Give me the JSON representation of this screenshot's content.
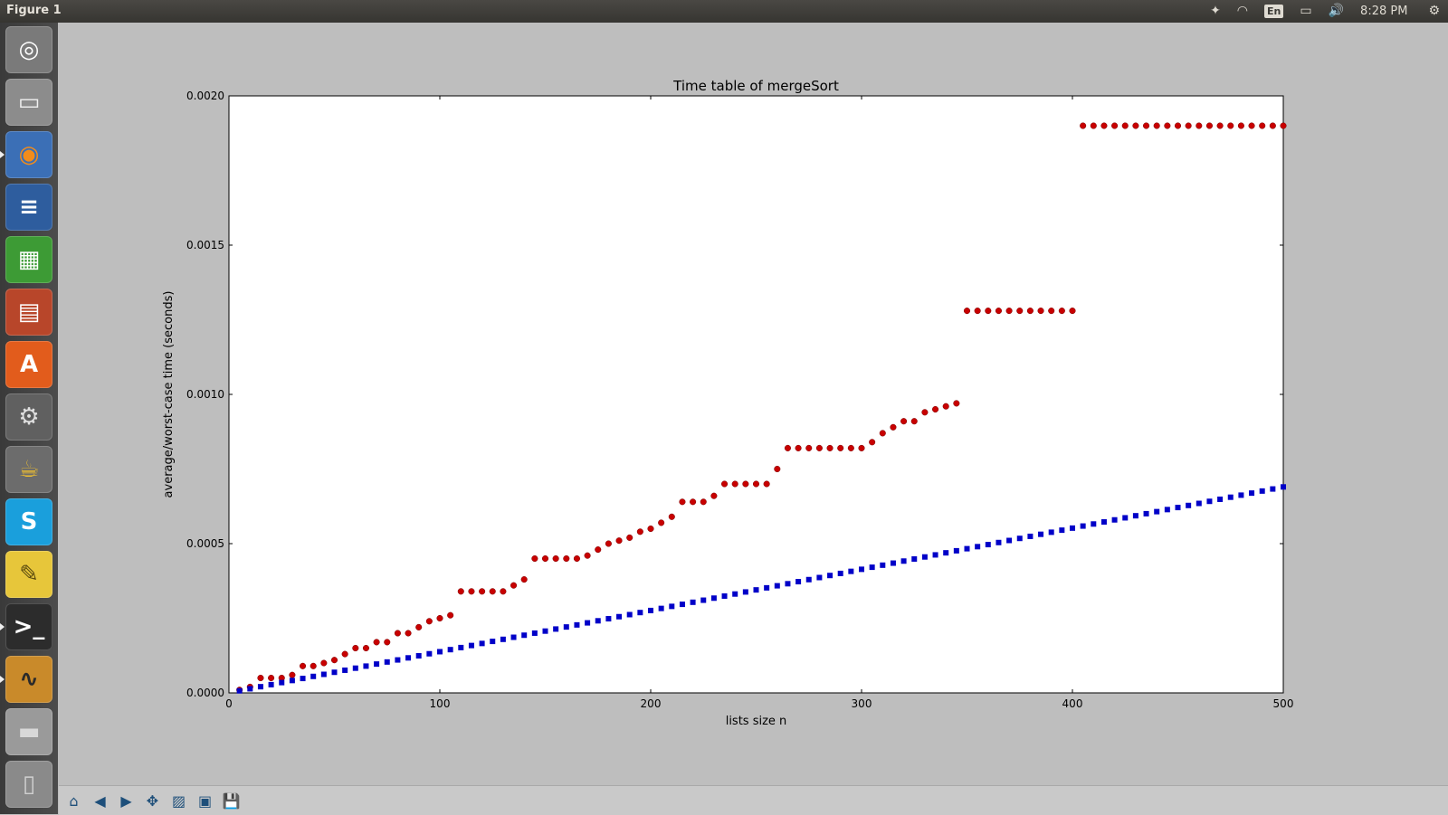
{
  "window": {
    "title": "Figure 1"
  },
  "topbar": {
    "indicators": [
      {
        "name": "dropbox-icon",
        "glyph": "✦"
      },
      {
        "name": "wifi-icon",
        "glyph": "◠"
      },
      {
        "name": "keyboard-layout-indicator",
        "glyph": "En"
      },
      {
        "name": "battery-icon",
        "glyph": "▭"
      },
      {
        "name": "volume-icon",
        "glyph": "🔊"
      }
    ],
    "clock": "8:28 PM",
    "gear_glyph": "⚙"
  },
  "launcher": {
    "items": [
      {
        "name": "ubuntu-dash-icon",
        "glyph": "◎",
        "bg": "#7a7a7a",
        "fg": "#ffffff"
      },
      {
        "name": "files-icon",
        "glyph": "▭",
        "bg": "#8c8c8c",
        "fg": "#f0f0f0"
      },
      {
        "name": "firefox-icon",
        "glyph": "◉",
        "bg": "#3b6fb6",
        "fg": "#f28c1b"
      },
      {
        "name": "writer-icon",
        "glyph": "≡",
        "bg": "#2e5d9e",
        "fg": "#ffffff"
      },
      {
        "name": "calc-icon",
        "glyph": "▦",
        "bg": "#3d9b35",
        "fg": "#ffffff"
      },
      {
        "name": "impress-icon",
        "glyph": "▤",
        "bg": "#b8462a",
        "fg": "#ffffff"
      },
      {
        "name": "software-center-icon",
        "glyph": "A",
        "bg": "#e25c1c",
        "fg": "#ffffff"
      },
      {
        "name": "system-settings-icon",
        "glyph": "⚙",
        "bg": "#606060",
        "fg": "#e0e0e0"
      },
      {
        "name": "tea-pot-icon",
        "glyph": "☕",
        "bg": "#6c6c6c",
        "fg": "#f0c030"
      },
      {
        "name": "skype-icon",
        "glyph": "S",
        "bg": "#1a9fdc",
        "fg": "#ffffff"
      },
      {
        "name": "notes-icon",
        "glyph": "✎",
        "bg": "#e7c63a",
        "fg": "#5a4a10"
      },
      {
        "name": "terminal-icon",
        "glyph": ">_",
        "bg": "#2c2c2c",
        "fg": "#ffffff"
      },
      {
        "name": "figure-window-icon",
        "glyph": "∿",
        "bg": "#c98a2a",
        "fg": "#2a2a2a"
      },
      {
        "name": "disk-icon",
        "glyph": "▬",
        "bg": "#9a9a9a",
        "fg": "#d8d8d8"
      },
      {
        "name": "trash-icon",
        "glyph": "▯",
        "bg": "#8a8a8a",
        "fg": "#d0d0d0"
      }
    ]
  },
  "toolbar": {
    "buttons": [
      {
        "name": "home-button",
        "glyph": "⌂"
      },
      {
        "name": "back-button",
        "glyph": "◀"
      },
      {
        "name": "forward-button",
        "glyph": "▶"
      },
      {
        "name": "pan-button",
        "glyph": "✥"
      },
      {
        "name": "zoom-rect-button",
        "glyph": "▨"
      },
      {
        "name": "configure-subplots-button",
        "glyph": "▣"
      },
      {
        "name": "save-button",
        "glyph": "💾"
      }
    ]
  },
  "colors": {
    "red_series": "#c80000",
    "blue_series": "#0000c8",
    "axes_bg": "#ffffff",
    "figure_bg": "#bebebe"
  },
  "chart_data": {
    "type": "scatter",
    "title": "Time table of mergeSort",
    "xlabel": "lists size n",
    "ylabel": "average/worst-case time (seconds)",
    "xlim": [
      0,
      500
    ],
    "ylim": [
      0,
      0.002
    ],
    "xticks": [
      "0",
      "100",
      "200",
      "300",
      "400",
      "500"
    ],
    "yticks": [
      "0.0000",
      "0.0005",
      "0.0010",
      "0.0015",
      "0.0020"
    ],
    "grid": false,
    "legend": "none",
    "series": [
      {
        "marker": "circle",
        "color": "#c80000",
        "x": [
          5,
          10,
          15,
          20,
          25,
          30,
          35,
          40,
          45,
          50,
          55,
          60,
          65,
          70,
          75,
          80,
          85,
          90,
          95,
          100,
          105,
          110,
          115,
          120,
          125,
          130,
          135,
          140,
          145,
          150,
          155,
          160,
          165,
          170,
          175,
          180,
          185,
          190,
          195,
          200,
          205,
          210,
          215,
          220,
          225,
          230,
          235,
          240,
          245,
          250,
          255,
          260,
          265,
          270,
          275,
          280,
          285,
          290,
          295,
          300,
          305,
          310,
          315,
          320,
          325,
          330,
          335,
          340,
          345,
          350,
          355,
          360,
          365,
          370,
          375,
          380,
          385,
          390,
          395,
          400,
          405,
          410,
          415,
          420,
          425,
          430,
          435,
          440,
          445,
          450,
          455,
          460,
          465,
          470,
          475,
          480,
          485,
          490,
          495,
          500
        ],
        "y": [
          1e-05,
          2e-05,
          5e-05,
          5e-05,
          5e-05,
          6e-05,
          9e-05,
          9e-05,
          0.0001,
          0.00011,
          0.00013,
          0.00015,
          0.00015,
          0.00017,
          0.00017,
          0.0002,
          0.0002,
          0.00022,
          0.00024,
          0.00025,
          0.00026,
          0.00034,
          0.00034,
          0.00034,
          0.00034,
          0.00034,
          0.00036,
          0.00038,
          0.00045,
          0.00045,
          0.00045,
          0.00045,
          0.00045,
          0.00046,
          0.00048,
          0.0005,
          0.00051,
          0.00052,
          0.00054,
          0.00055,
          0.00057,
          0.00059,
          0.00064,
          0.00064,
          0.00064,
          0.00066,
          0.0007,
          0.0007,
          0.0007,
          0.0007,
          0.0007,
          0.00075,
          0.00082,
          0.00082,
          0.00082,
          0.00082,
          0.00082,
          0.00082,
          0.00082,
          0.00082,
          0.00084,
          0.00087,
          0.00089,
          0.00091,
          0.00091,
          0.00094,
          0.00095,
          0.00096,
          0.00097,
          0.00128,
          0.00128,
          0.00128,
          0.00128,
          0.00128,
          0.00128,
          0.00128,
          0.00128,
          0.00128,
          0.00128,
          0.00128,
          0.0019,
          0.0019,
          0.0019,
          0.0019,
          0.0019,
          0.0019,
          0.0019,
          0.0019,
          0.0019,
          0.0019,
          0.0019,
          0.0019,
          0.0019,
          0.0019,
          0.0019,
          0.0019,
          0.0019,
          0.0019,
          0.0019,
          0.0019
        ]
      },
      {
        "marker": "square",
        "color": "#0000c8",
        "x_start": 5,
        "x_step": 5,
        "count": 100,
        "y_per_n": 1.38e-06
      }
    ]
  }
}
